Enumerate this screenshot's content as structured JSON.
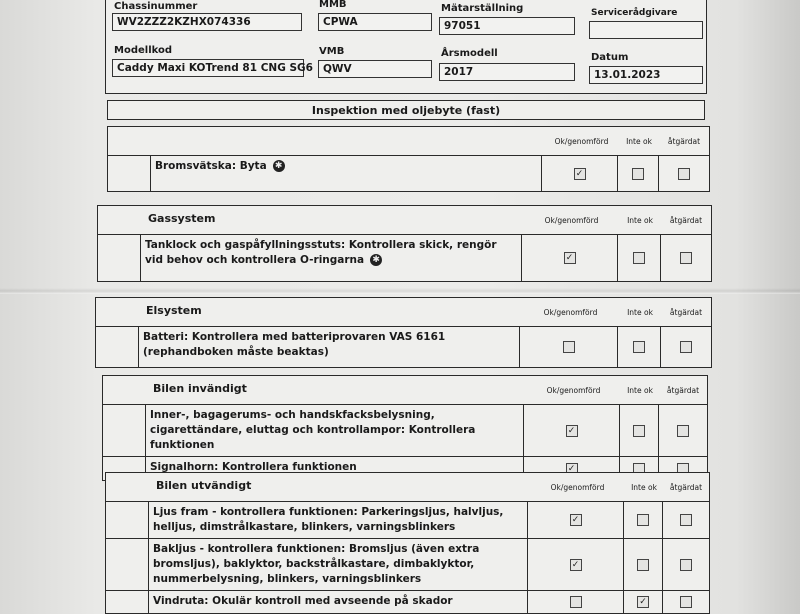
{
  "vehicle": {
    "chassis_label": "Chassinummer",
    "chassis_value": "WV2ZZZ2KZHX074336",
    "mmb_label": "MMB",
    "mmb_value": "CPWA",
    "mileage_label": "Mätarställning",
    "mileage_value": "97051",
    "advisor_label": "Servicerådgivare",
    "advisor_value": "",
    "model_label": "Modellkod",
    "model_value": "Caddy Maxi KOTrend 81 CNG SG6",
    "vmb_label": "VMB",
    "vmb_value": "QWV",
    "year_label": "Årsmodell",
    "year_value": "2017",
    "date_label": "Datum",
    "date_value": "13.01.2023"
  },
  "title": "Inspektion med oljebyte (fast)",
  "columns": {
    "ok": "Ok/genomförd",
    "not_ok": "Inte ok",
    "fixed": "åtgärdat"
  },
  "sections": [
    {
      "name": "",
      "items": [
        {
          "text": "Bromsvätska: Byta",
          "icon": "wrench-symbol-icon",
          "ok": true,
          "not_ok": false,
          "fixed": false
        }
      ]
    },
    {
      "name": "Gassystem",
      "items": [
        {
          "text": "Tanklock och gaspåfyllningsstuts: Kontrollera skick, rengör vid behov och kontrollera O-ringarna",
          "icon": "wrench-symbol-icon",
          "ok": true,
          "not_ok": false,
          "fixed": false
        }
      ]
    },
    {
      "name": "Elsystem",
      "items": [
        {
          "text": "Batteri: Kontrollera med batteriprovaren VAS 6161 (rephandboken måste beaktas)",
          "ok": false,
          "not_ok": false,
          "fixed": false
        }
      ]
    },
    {
      "name": "Bilen invändigt",
      "items": [
        {
          "text": "Inner-, bagagerums- och handskfacksbelysning, cigarettändare, eluttag och kontrollampor: Kontrollera funktionen",
          "ok": true,
          "not_ok": false,
          "fixed": false
        },
        {
          "text": "Signalhorn: Kontrollera funktionen",
          "ok": true,
          "not_ok": false,
          "fixed": false
        }
      ]
    },
    {
      "name": "Bilen utvändigt",
      "items": [
        {
          "text": "Ljus fram - kontrollera funktionen: Parkeringsljus, halvljus, helljus, dimstrålkastare, blinkers, varningsblinkers",
          "ok": true,
          "not_ok": false,
          "fixed": false
        },
        {
          "text": "Bakljus - kontrollera funktionen: Bromsljus (även extra bromsljus), baklyktor, backstrålkastare, dimbaklyktor, nummerbelysning, blinkers, varningsblinkers",
          "ok": true,
          "not_ok": false,
          "fixed": false
        },
        {
          "text": "Vindruta: Okulär kontroll med avseende på skador",
          "ok": false,
          "not_ok": true,
          "fixed": false
        }
      ]
    }
  ]
}
